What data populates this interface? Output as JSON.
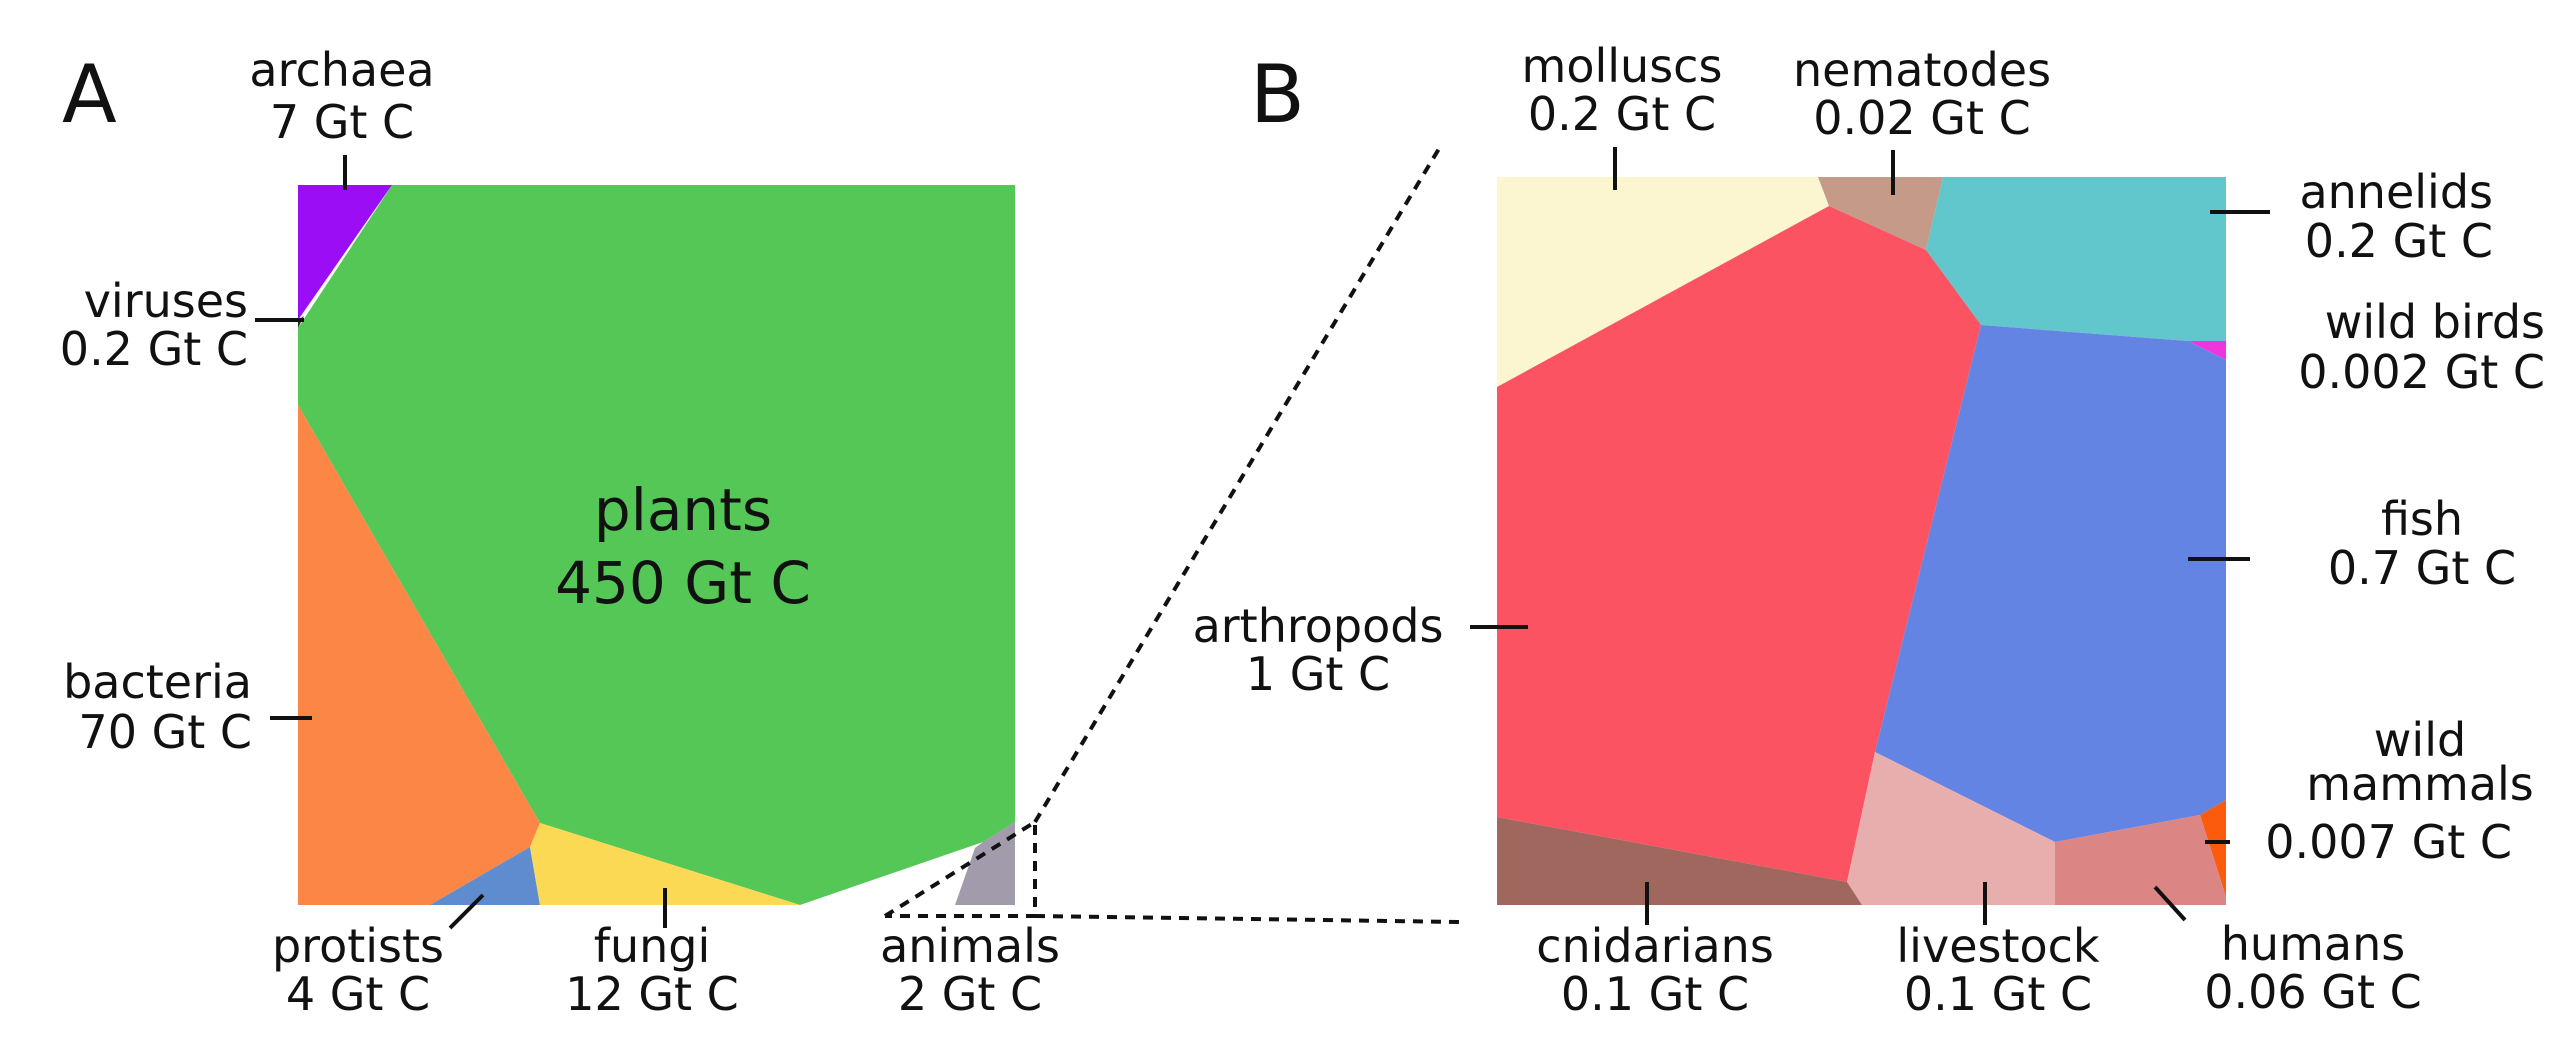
{
  "panels": {
    "a": "A",
    "b": "B"
  },
  "panel_a": {
    "cells": [
      {
        "id": "plants",
        "name": "plants",
        "value": "450 Gt C",
        "color": "#55c756"
      },
      {
        "id": "archaea",
        "name": "archaea",
        "value": "7 Gt C",
        "color": "#9b0df5"
      },
      {
        "id": "viruses",
        "name": "viruses",
        "value": "0.2 Gt C",
        "color": "#2f2f2f"
      },
      {
        "id": "bacteria",
        "name": "bacteria",
        "value": "70 Gt C",
        "color": "#fb8646"
      },
      {
        "id": "protists",
        "name": "protists",
        "value": "4 Gt C",
        "color": "#5e8ccf"
      },
      {
        "id": "fungi",
        "name": "fungi",
        "value": "12 Gt C",
        "color": "#fcd955"
      },
      {
        "id": "animals",
        "name": "animals",
        "value": "2 Gt C",
        "color": "#a19bab"
      }
    ]
  },
  "panel_b": {
    "cells": [
      {
        "id": "molluscs",
        "name": "molluscs",
        "value": "0.2 Gt C",
        "color": "#fbf6cf"
      },
      {
        "id": "nematodes",
        "name": "nematodes",
        "value": "0.02 Gt C",
        "color": "#c69a89"
      },
      {
        "id": "annelids",
        "name": "annelids",
        "value": "0.2 Gt C",
        "color": "#62c6cd"
      },
      {
        "id": "wild_birds",
        "name": "wild birds",
        "value": "0.002 Gt C",
        "color": "#ee36dd"
      },
      {
        "id": "fish",
        "name": "fish",
        "value": "0.7 Gt C",
        "color": "#6484e4"
      },
      {
        "id": "wild_mammals",
        "name_line1": "wild",
        "name_line2": "mammals",
        "value": "0.007 Gt C",
        "color": "#fb5b0d"
      },
      {
        "id": "humans",
        "name": "humans",
        "value": "0.06 Gt C",
        "color": "#db8585"
      },
      {
        "id": "livestock",
        "name": "livestock",
        "value": "0.1 Gt C",
        "color": "#e8aeae"
      },
      {
        "id": "cnidarians",
        "name": "cnidarians",
        "value": "0.1 Gt C",
        "color": "#9f675d"
      },
      {
        "id": "arthropods",
        "name": "arthropods",
        "value": "1 Gt C",
        "color": "#fb5361"
      }
    ]
  }
}
